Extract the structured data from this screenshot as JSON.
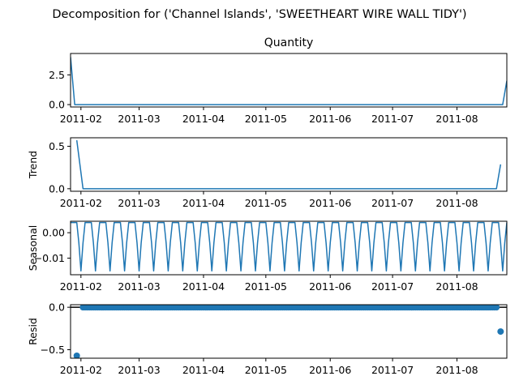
{
  "suptitle": "Decomposition for ('Channel Islands', 'SWEETHEART WIRE WALL TIDY')",
  "chart_data": [
    {
      "type": "line",
      "name": "observed",
      "title": "Quantity",
      "ylabel": "",
      "ylim": [
        -0.2,
        4.3
      ],
      "yticks": [
        0.0,
        2.5
      ],
      "ytick_labels": [
        "0.0",
        "2.5"
      ],
      "xlim": [
        "2011-01-27",
        "2011-08-25"
      ],
      "xticks": [
        "2011-02",
        "2011-03",
        "2011-04",
        "2011-05",
        "2011-06",
        "2011-07",
        "2011-08"
      ],
      "points": [
        [
          "2011-01-27",
          4.0
        ],
        [
          "2011-01-29",
          0.0
        ],
        [
          "2011-08-23",
          0.0
        ],
        [
          "2011-08-25",
          2.0
        ]
      ]
    },
    {
      "type": "line",
      "name": "trend",
      "title": "",
      "ylabel": "Trend",
      "ylim": [
        -0.03,
        0.6
      ],
      "yticks": [
        0.0,
        0.5
      ],
      "ytick_labels": [
        "0.0",
        "0.5"
      ],
      "xlim": [
        "2011-01-27",
        "2011-08-25"
      ],
      "xticks": [
        "2011-02",
        "2011-03",
        "2011-04",
        "2011-05",
        "2011-06",
        "2011-07",
        "2011-08"
      ],
      "points": [
        [
          "2011-01-30",
          0.571
        ],
        [
          "2011-02-02",
          0.0
        ],
        [
          "2011-08-20",
          0.0
        ],
        [
          "2011-08-22",
          0.286
        ]
      ]
    },
    {
      "type": "line",
      "name": "seasonal",
      "title": "",
      "ylabel": "Seasonal",
      "ylim": [
        -0.0165,
        0.0045
      ],
      "yticks": [
        0.0,
        -0.01
      ],
      "ytick_labels": [
        "0.00",
        "−0.01"
      ],
      "xlim": [
        "2011-01-27",
        "2011-08-25"
      ],
      "xticks": [
        "2011-02",
        "2011-03",
        "2011-04",
        "2011-05",
        "2011-06",
        "2011-07",
        "2011-08"
      ],
      "period_days": 7,
      "cycle_start": "2011-01-27",
      "cycle_values": [
        0.004,
        0.004,
        0.004,
        0.004,
        -0.004,
        -0.015,
        -0.004
      ]
    },
    {
      "type": "scatter",
      "name": "resid",
      "title": "",
      "ylabel": "Resid",
      "ylim": [
        -0.6,
        0.03
      ],
      "yticks": [
        0.0,
        -0.5
      ],
      "ytick_labels": [
        "0.0",
        "−0.5"
      ],
      "xlim": [
        "2011-01-27",
        "2011-08-25"
      ],
      "xticks": [
        "2011-02",
        "2011-03",
        "2011-04",
        "2011-05",
        "2011-06",
        "2011-07",
        "2011-08"
      ],
      "baseline": 0.0,
      "outliers": [
        [
          "2011-01-30",
          -0.571
        ],
        [
          "2011-08-22",
          -0.286
        ]
      ],
      "zero_range": [
        "2011-02-02",
        "2011-08-20"
      ],
      "zero_step_days": 1
    }
  ]
}
